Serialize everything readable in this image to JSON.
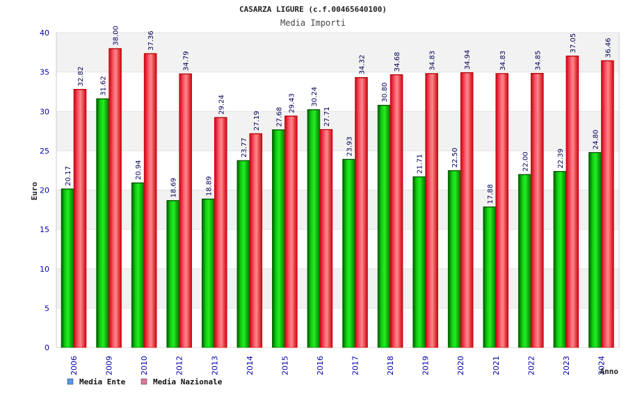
{
  "chart_data": {
    "type": "bar",
    "title": "CASARZA LIGURE (c.f.00465640100)",
    "subtitle": "Media Importi",
    "xlabel": "Anno",
    "ylabel": "Euro",
    "ylim": [
      0,
      40
    ],
    "yticks": [
      0,
      5,
      10,
      15,
      20,
      25,
      30,
      35,
      40
    ],
    "categories": [
      "2006",
      "2009",
      "2010",
      "2012",
      "2013",
      "2014",
      "2015",
      "2016",
      "2017",
      "2018",
      "2019",
      "2020",
      "2021",
      "2022",
      "2023",
      "2024"
    ],
    "series": [
      {
        "name": "Media Ente",
        "color": "#00bb00",
        "values": [
          20.17,
          31.62,
          20.94,
          18.69,
          18.89,
          23.77,
          27.68,
          30.24,
          23.93,
          30.8,
          21.71,
          22.5,
          17.88,
          22.0,
          22.39,
          24.8
        ],
        "labels": [
          "20.17",
          "31.62",
          "20.94",
          "18.69",
          "18.89",
          "23.77",
          "27.68",
          "30.24",
          "23.93",
          "30.80",
          "21.71",
          "22.50",
          "17.88",
          "22.00",
          "22.39",
          "24.80"
        ]
      },
      {
        "name": "Media Nazionale",
        "color": "#ee1122",
        "values": [
          32.82,
          38.0,
          37.36,
          34.79,
          29.24,
          27.19,
          29.43,
          27.71,
          34.32,
          34.68,
          34.83,
          34.94,
          34.83,
          34.85,
          37.05,
          36.46
        ],
        "labels": [
          "32.82",
          "38.00",
          "37.36",
          "34.79",
          "29.24",
          "27.19",
          "29.43",
          "27.71",
          "34.32",
          "34.68",
          "34.83",
          "34.94",
          "34.83",
          "34.85",
          "37.05",
          "36.46"
        ]
      }
    ],
    "legend": {
      "position": "bottom-left",
      "items": [
        {
          "label": "Media Ente",
          "color": "#5599ee"
        },
        {
          "label": "Media Nazionale",
          "color": "#dd7799"
        }
      ]
    },
    "grid": true,
    "band_colors": [
      "#f2f2f2",
      "#ffffff"
    ]
  }
}
